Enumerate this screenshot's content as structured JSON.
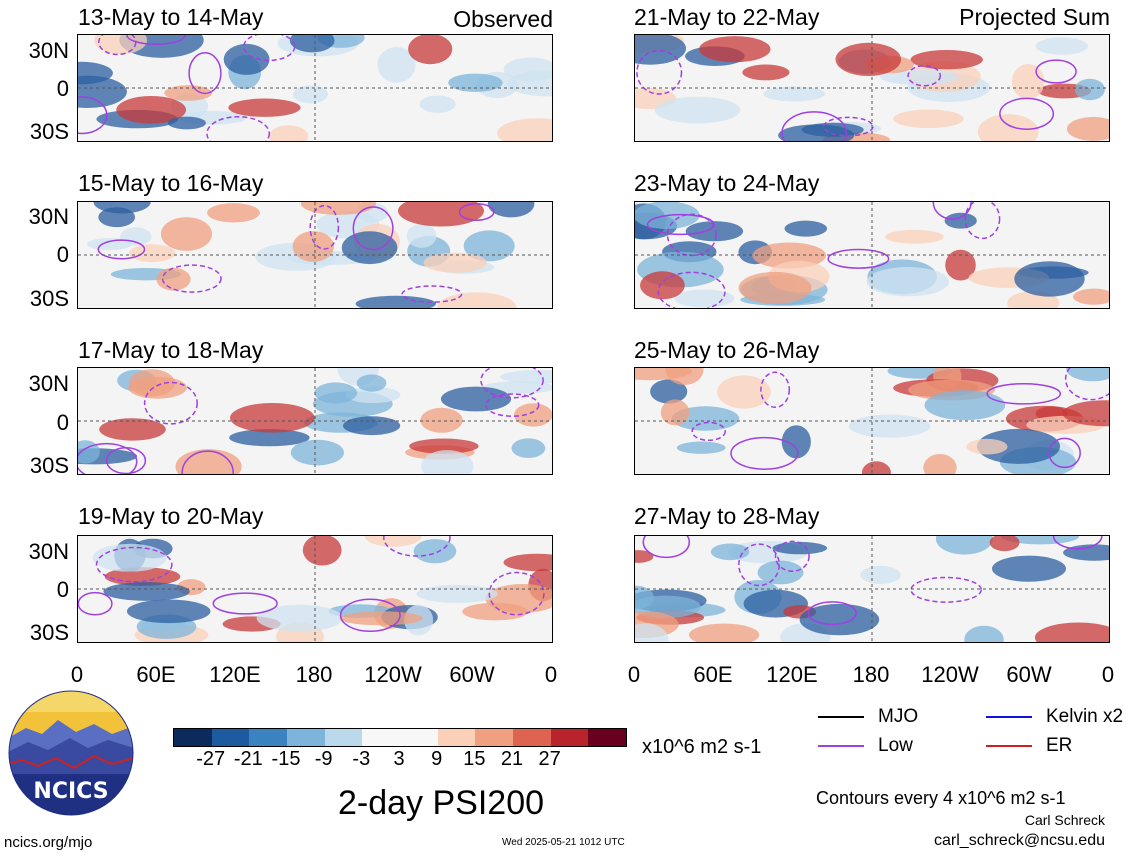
{
  "panels": [
    {
      "date": "13-May to 14-May",
      "right": "Observed"
    },
    {
      "date": "21-May to 22-May",
      "right": "Projected Sum"
    },
    {
      "date": "15-May to 16-May",
      "right": ""
    },
    {
      "date": "23-May to 24-May",
      "right": ""
    },
    {
      "date": "17-May to 18-May",
      "right": ""
    },
    {
      "date": "25-May to 26-May",
      "right": ""
    },
    {
      "date": "19-May to 20-May",
      "right": ""
    },
    {
      "date": "27-May to 28-May",
      "right": ""
    }
  ],
  "lat_labels": [
    "30N",
    "0",
    "30S"
  ],
  "lon_labels": [
    "0",
    "60E",
    "120E",
    "180",
    "120W",
    "60W",
    "0"
  ],
  "colorbar": {
    "colors": [
      "#0c2a5c",
      "#1e5aa0",
      "#3a82c0",
      "#7db4d9",
      "#bcd9ec",
      "#f7f7f7",
      "#f7f7f7",
      "#fbd0b9",
      "#f0a080",
      "#dc6450",
      "#b8242c",
      "#6a0020"
    ],
    "labels": [
      "-27",
      "-21",
      "-15",
      "-9",
      "-3",
      "3",
      "9",
      "15",
      "21",
      "27"
    ]
  },
  "units": "x10^6 m2 s-1",
  "title": "2-day PSI200",
  "legend": [
    {
      "label": "MJO",
      "color": "#000000"
    },
    {
      "label": "Kelvin x2",
      "color": "#1010e0"
    },
    {
      "label": "Low",
      "color": "#a040e0"
    },
    {
      "label": "ER",
      "color": "#d02020"
    }
  ],
  "contour_note": "Contours every 4 x10^6 m2 s-1",
  "author": "Carl Schreck",
  "email": "carl_schreck@ncsu.edu",
  "site": "ncics.org/mjo",
  "timestamp": "Wed 2025-05-21 1012 UTC",
  "logo_text": "NCICS"
}
